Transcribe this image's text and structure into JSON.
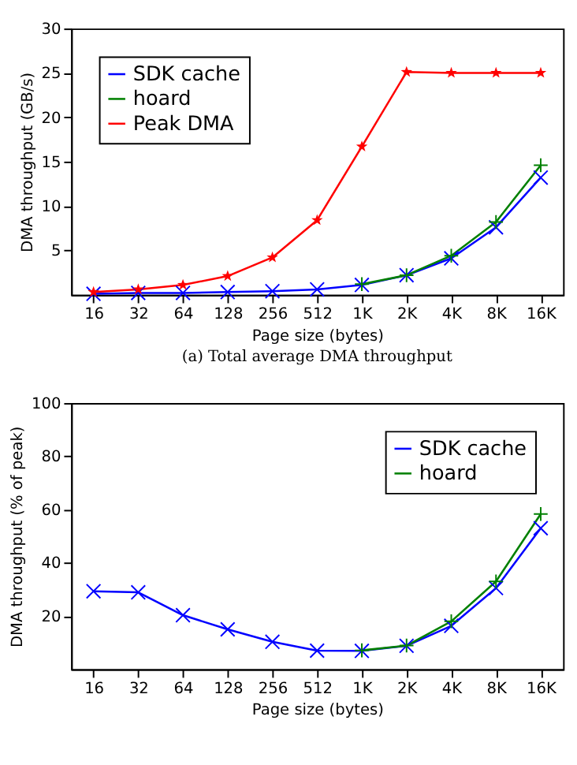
{
  "chart_data": [
    {
      "type": "line",
      "categories": [
        "16",
        "32",
        "64",
        "128",
        "256",
        "512",
        "1K",
        "2K",
        "4K",
        "8K",
        "16K"
      ],
      "xlabel": "Page size (bytes)",
      "ylabel": "DMA throughput (GB/s)",
      "ylim": [
        0,
        30
      ],
      "yticks": [
        5,
        10,
        15,
        20,
        25,
        30
      ],
      "legend": "top left",
      "annotations": [
        "(a) Total average DMA throughput"
      ],
      "series": [
        {
          "name": "SDK cache",
          "color": "#0000ff",
          "marker": "cross",
          "values": [
            0.1,
            0.2,
            0.2,
            0.3,
            0.4,
            0.6,
            1.1,
            2.2,
            4.1,
            7.6,
            13.2
          ]
        },
        {
          "name": "hoard",
          "color": "#008000",
          "marker": "plus",
          "values": [
            null,
            null,
            null,
            null,
            null,
            null,
            1.2,
            2.2,
            4.4,
            8.2,
            14.6
          ]
        },
        {
          "name": "Peak DMA",
          "color": "#ff0000",
          "marker": "star",
          "values": [
            0.3,
            0.6,
            1.1,
            2.1,
            4.2,
            8.4,
            16.7,
            25.1,
            25.0,
            25.0,
            25.0
          ]
        }
      ]
    },
    {
      "type": "line",
      "categories": [
        "16",
        "32",
        "64",
        "128",
        "256",
        "512",
        "1K",
        "2K",
        "4K",
        "8K",
        "16K"
      ],
      "xlabel": "Page size (bytes)",
      "ylabel": "DMA throughput (% of peak)",
      "ylim": [
        0,
        100
      ],
      "yticks": [
        20,
        40,
        60,
        80,
        100
      ],
      "legend": "top right",
      "series": [
        {
          "name": "SDK cache",
          "color": "#0000ff",
          "marker": "cross",
          "values": [
            29.3,
            28.9,
            20.3,
            15,
            10.3,
            7,
            6.9,
            8.8,
            16.3,
            30.5,
            53
          ]
        },
        {
          "name": "hoard",
          "color": "#008000",
          "marker": "plus",
          "values": [
            null,
            null,
            null,
            null,
            null,
            null,
            7.1,
            8.9,
            18,
            33,
            58.3
          ]
        }
      ]
    }
  ]
}
